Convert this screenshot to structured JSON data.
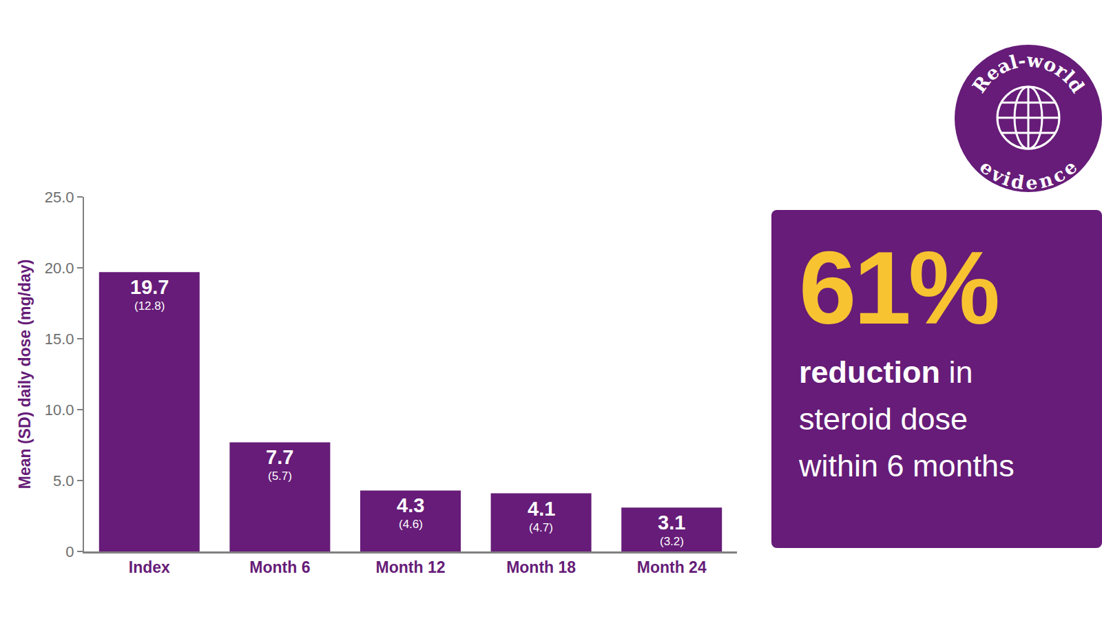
{
  "chart_data": {
    "type": "bar",
    "y_label": "Mean (SD) daily dose (mg/day)",
    "categories": [
      "Index",
      "Month 6",
      "Month 12",
      "Month 18",
      "Month 24"
    ],
    "values": [
      19.7,
      7.7,
      4.3,
      4.1,
      3.1
    ],
    "sd_labels": [
      "(12.8)",
      "(5.7)",
      "(4.6)",
      "(4.7)",
      "(3.2)"
    ],
    "color": "#661c78",
    "ylim": [
      0,
      25
    ],
    "yticks": [
      0,
      {
        "value": 5,
        "label": "5.0"
      },
      {
        "value": 10,
        "label": "10.0"
      },
      {
        "value": 15,
        "label": "15.0"
      },
      {
        "value": 20,
        "label": "20.0"
      },
      {
        "value": 25,
        "label": "25.0"
      }
    ],
    "grid": false,
    "data_labels": true
  },
  "callout": {
    "figure": "61%",
    "emphasis": "reduction",
    "text_lines": [
      "in",
      "steroid dose",
      "within 6 months"
    ]
  },
  "badge": [
    "Real-world",
    "evidence"
  ]
}
